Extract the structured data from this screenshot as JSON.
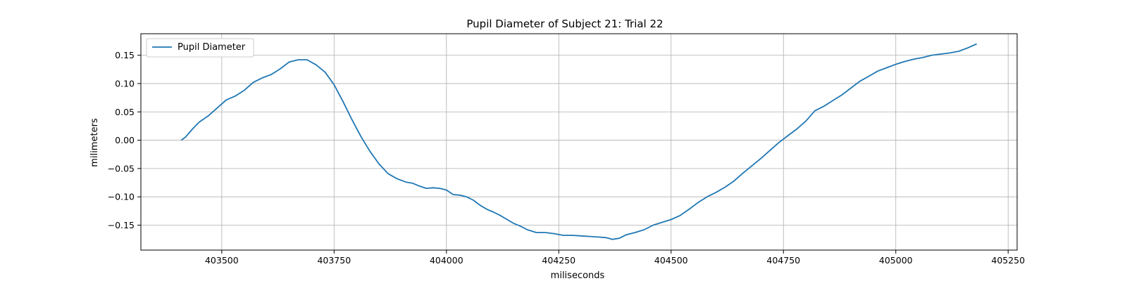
{
  "chart_data": {
    "type": "line",
    "title": "Pupil Diameter of Subject 21: Trial 22",
    "xlabel": "miliseconds",
    "ylabel": "milimeters",
    "xlim": [
      403320,
      405270
    ],
    "ylim": [
      -0.194,
      0.188
    ],
    "xticks": [
      403500,
      403750,
      404000,
      404250,
      404500,
      404750,
      405000,
      405250
    ],
    "yticks": [
      -0.15,
      -0.1,
      -0.05,
      0.0,
      0.05,
      0.1,
      0.15
    ],
    "xtick_labels": [
      "403500",
      "403750",
      "404000",
      "404250",
      "404500",
      "404750",
      "405000",
      "405250"
    ],
    "ytick_labels": [
      "−0.15",
      "−0.10",
      "−0.05",
      "0.00",
      "0.05",
      "0.10",
      "0.15"
    ],
    "grid": true,
    "legend_position": "top-left",
    "series": [
      {
        "name": "Pupil Diameter",
        "color": "#1f77b4",
        "x": [
          403410,
          403420,
          403435,
          403450,
          403470,
          403490,
          403510,
          403530,
          403550,
          403570,
          403590,
          403610,
          403630,
          403650,
          403670,
          403690,
          403710,
          403730,
          403750,
          403770,
          403790,
          403810,
          403830,
          403850,
          403870,
          403890,
          403910,
          403925,
          403940,
          403955,
          403970,
          403985,
          404000,
          404015,
          404030,
          404045,
          404060,
          404075,
          404090,
          404105,
          404120,
          404135,
          404150,
          404165,
          404180,
          404200,
          404220,
          404240,
          404260,
          404280,
          404300,
          404320,
          404340,
          404355,
          404370,
          404385,
          404400,
          404420,
          404440,
          404460,
          404480,
          404500,
          404520,
          404540,
          404560,
          404580,
          404600,
          404620,
          404640,
          404660,
          404680,
          404700,
          404720,
          404740,
          404760,
          404780,
          404800,
          404820,
          404840,
          404860,
          404880,
          404900,
          404920,
          404940,
          404960,
          404980,
          405000,
          405020,
          405040,
          405060,
          405080,
          405100,
          405120,
          405140,
          405160,
          405180
        ],
        "y": [
          0.0,
          0.006,
          0.02,
          0.032,
          0.043,
          0.057,
          0.071,
          0.078,
          0.088,
          0.102,
          0.11,
          0.116,
          0.126,
          0.138,
          0.142,
          0.142,
          0.133,
          0.12,
          0.098,
          0.068,
          0.036,
          0.006,
          -0.02,
          -0.042,
          -0.059,
          -0.068,
          -0.074,
          -0.076,
          -0.081,
          -0.085,
          -0.084,
          -0.085,
          -0.088,
          -0.096,
          -0.097,
          -0.1,
          -0.106,
          -0.115,
          -0.122,
          -0.127,
          -0.133,
          -0.14,
          -0.147,
          -0.152,
          -0.158,
          -0.163,
          -0.163,
          -0.165,
          -0.168,
          -0.168,
          -0.169,
          -0.17,
          -0.171,
          -0.172,
          -0.175,
          -0.173,
          -0.167,
          -0.163,
          -0.158,
          -0.15,
          -0.145,
          -0.14,
          -0.133,
          -0.122,
          -0.11,
          -0.1,
          -0.092,
          -0.083,
          -0.072,
          -0.058,
          -0.045,
          -0.032,
          -0.018,
          -0.004,
          0.008,
          0.02,
          0.034,
          0.052,
          0.06,
          0.07,
          0.08,
          0.092,
          0.104,
          0.113,
          0.122,
          0.128,
          0.134,
          0.139,
          0.143,
          0.146,
          0.15,
          0.152,
          0.154,
          0.157,
          0.163,
          0.17
        ]
      }
    ]
  }
}
